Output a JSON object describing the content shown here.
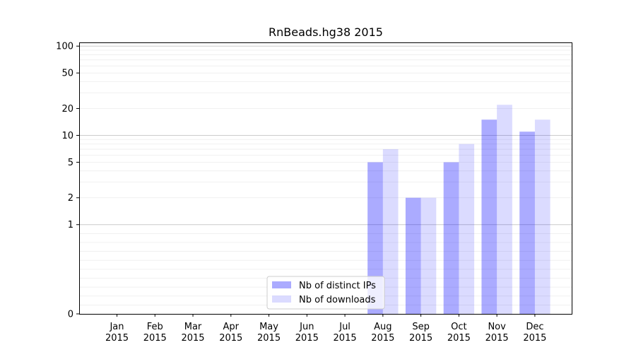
{
  "chart_data": {
    "type": "bar",
    "title": "RnBeads.hg38 2015",
    "xlabel": "",
    "ylabel": "",
    "y_scale": "symlog",
    "ylim": [
      0,
      110
    ],
    "y_ticks": [
      0,
      1,
      2,
      5,
      10,
      20,
      50,
      100
    ],
    "grid": "horizontal",
    "legend_position": "lower-center",
    "categories": [
      [
        "Jan",
        "2015"
      ],
      [
        "Feb",
        "2015"
      ],
      [
        "Mar",
        "2015"
      ],
      [
        "Apr",
        "2015"
      ],
      [
        "May",
        "2015"
      ],
      [
        "Jun",
        "2015"
      ],
      [
        "Jul",
        "2015"
      ],
      [
        "Aug",
        "2015"
      ],
      [
        "Sep",
        "2015"
      ],
      [
        "Oct",
        "2015"
      ],
      [
        "Nov",
        "2015"
      ],
      [
        "Dec",
        "2015"
      ]
    ],
    "series": [
      {
        "name": "Nb of distinct IPs",
        "color": "#0000ff",
        "opacity": 0.33,
        "values": [
          0,
          0,
          0,
          0,
          0,
          0,
          0,
          5,
          2,
          5,
          15,
          11
        ]
      },
      {
        "name": "Nb of downloads",
        "color": "#0000ff",
        "opacity": 0.14,
        "values": [
          0,
          0,
          0,
          0,
          0,
          0,
          0,
          7,
          2,
          8,
          22,
          15
        ]
      }
    ]
  }
}
